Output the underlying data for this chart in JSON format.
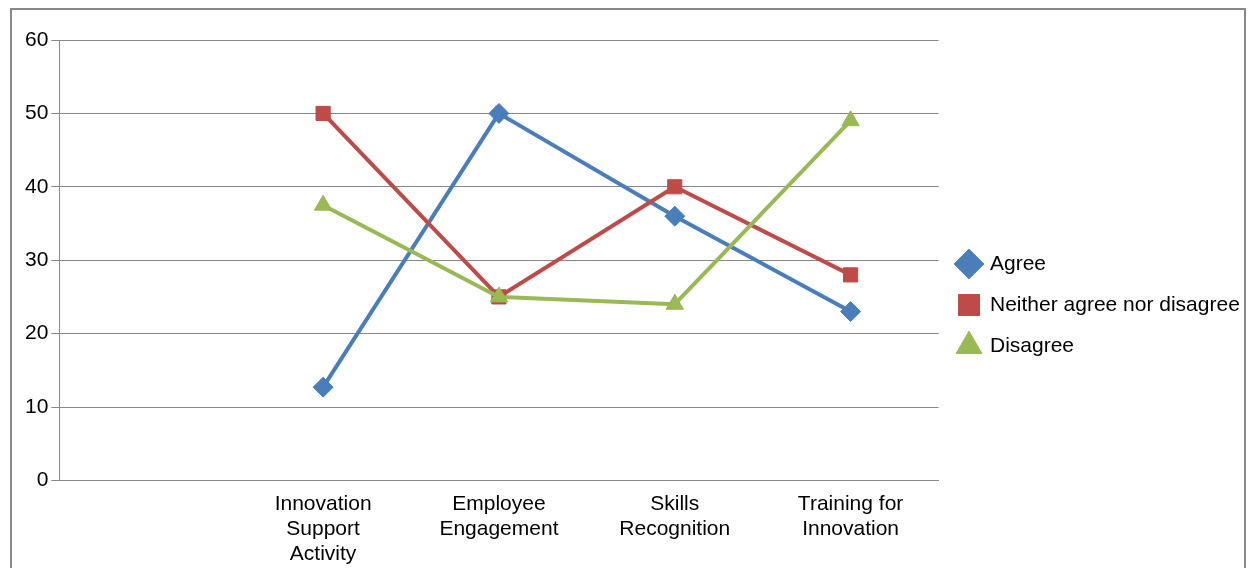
{
  "chart_data": {
    "type": "line",
    "categories": [
      null,
      "Innovation Support Activity",
      "Employee Engagement",
      "Skills Recognition",
      "Training for Innovation"
    ],
    "series": [
      {
        "name": "Agree",
        "color": "#4a7ebb",
        "marker": "diamond",
        "values": [
          null,
          12.7,
          50,
          36,
          23
        ]
      },
      {
        "name": "Neither agree nor disagree",
        "color": "#be4b48",
        "marker": "square",
        "values": [
          null,
          50,
          25,
          40,
          28
        ]
      },
      {
        "name": "Disagree",
        "color": "#98b954",
        "marker": "triangle",
        "values": [
          null,
          37.5,
          25,
          24,
          49
        ]
      }
    ],
    "ylim": [
      0,
      60
    ],
    "yticks": [
      0,
      10,
      20,
      30,
      40,
      50,
      60
    ],
    "grid": "y",
    "legend": "right",
    "line_style": "solid"
  }
}
